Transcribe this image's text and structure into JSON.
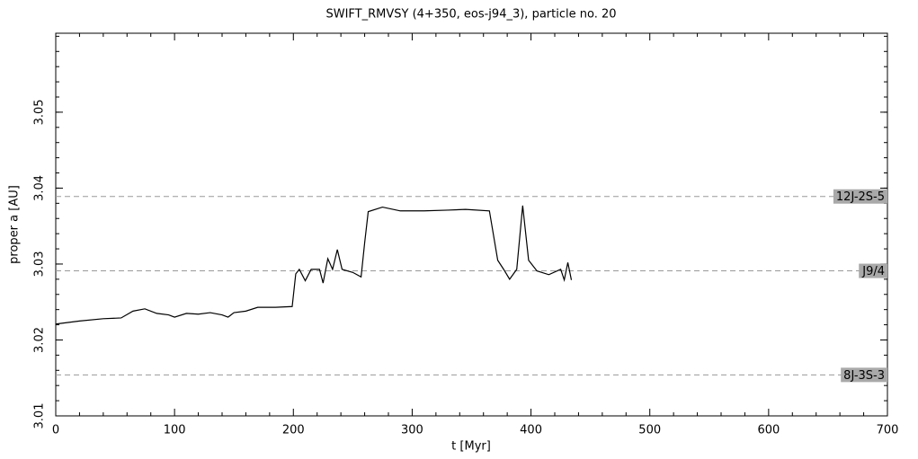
{
  "chart_data": {
    "type": "line",
    "title": "SWIFT_RMVSY (4+350, eos-j94_3), particle no. 20",
    "xlabel": "t [Myr]",
    "ylabel": "proper a [AU]",
    "xlim": [
      0,
      700
    ],
    "xticks": [
      0,
      100,
      200,
      300,
      400,
      500,
      600,
      700
    ],
    "ylim": [
      3.01,
      3.0604
    ],
    "yticks": [
      3.01,
      3.02,
      3.03,
      3.04,
      3.05
    ],
    "series": [
      {
        "color": "#000000",
        "x": [
          0,
          20,
          40,
          55,
          65,
          75,
          85,
          95,
          100,
          110,
          120,
          130,
          140,
          145,
          150,
          160,
          170,
          185,
          199,
          202,
          205,
          210,
          215,
          222,
          225,
          229,
          233,
          237,
          241,
          250,
          257,
          260,
          263,
          275,
          290,
          310,
          330,
          345,
          365,
          372,
          377,
          382,
          388,
          393,
          398,
          405,
          415,
          425,
          428,
          431,
          434
        ],
        "values": [
          3.0221,
          3.0225,
          3.0228,
          3.0229,
          3.0238,
          3.0241,
          3.0235,
          3.0233,
          3.023,
          3.0235,
          3.0234,
          3.0236,
          3.0233,
          3.023,
          3.0236,
          3.0238,
          3.0243,
          3.0243,
          3.0244,
          3.0287,
          3.0293,
          3.0278,
          3.0293,
          3.0293,
          3.0275,
          3.0307,
          3.0293,
          3.0319,
          3.0293,
          3.0289,
          3.0283,
          3.0328,
          3.0369,
          3.0375,
          3.037,
          3.037,
          3.0371,
          3.0372,
          3.037,
          3.0305,
          3.0293,
          3.028,
          3.0293,
          3.0377,
          3.0305,
          3.0291,
          3.0286,
          3.0293,
          3.0279,
          3.0302,
          3.0279
        ]
      }
    ],
    "annotations": [
      {
        "label": "12J-2S-5",
        "value": 3.0389
      },
      {
        "label": "J9/4",
        "value": 3.0291
      },
      {
        "label": "8J-3S-3",
        "value": 3.0154
      }
    ]
  }
}
